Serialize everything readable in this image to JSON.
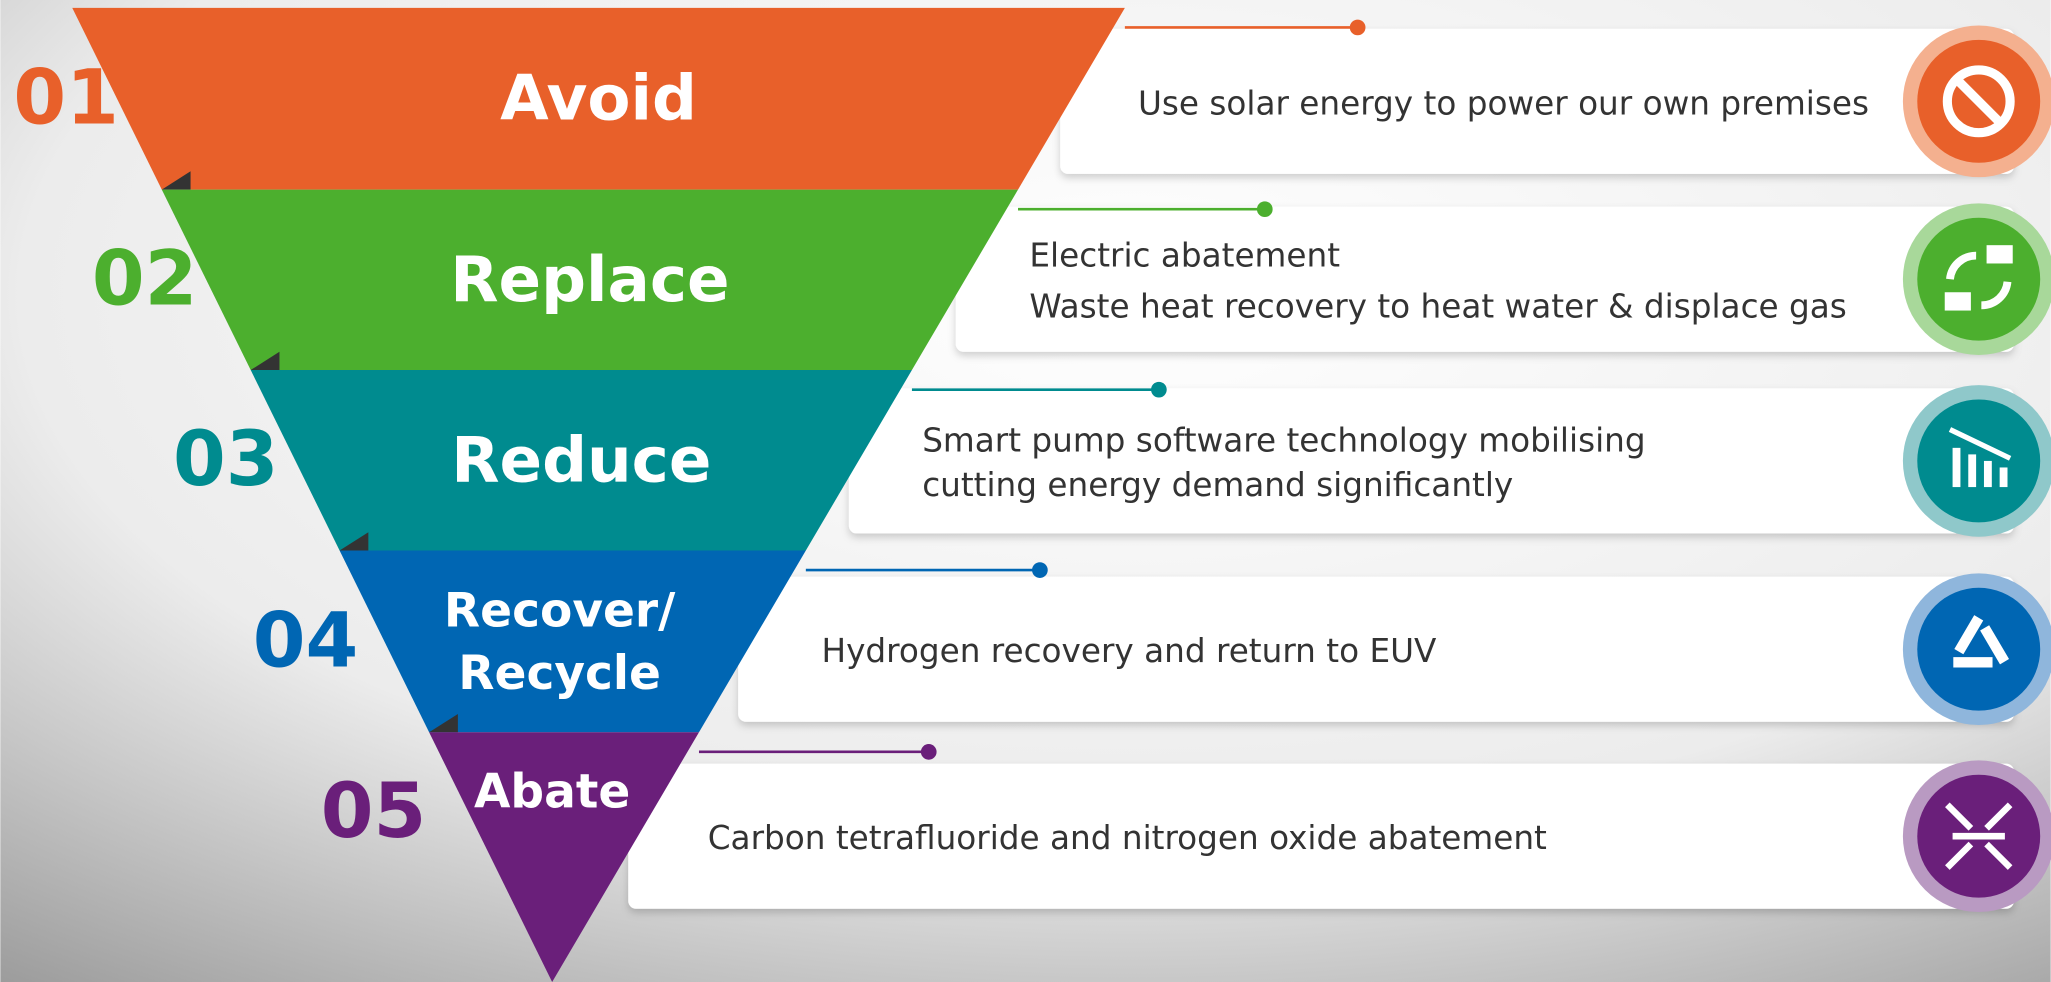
{
  "levels": [
    {
      "number": "01",
      "label": [
        "Avoid"
      ],
      "description": [
        "Use solar energy to power our own premises"
      ],
      "color": "#e8602a",
      "light": "#f4b08f"
    },
    {
      "number": "02",
      "label": [
        "Replace"
      ],
      "description": [
        "Electric abatement",
        "Waste heat recovery to heat water & displace gas"
      ],
      "color": "#4caf2e",
      "light": "#a8d89a"
    },
    {
      "number": "03",
      "label": [
        "Reduce"
      ],
      "description": [
        "Smart pump software technology mobilising",
        "cutting energy demand significantly"
      ],
      "color": "#008b8f",
      "light": "#8fc8ca"
    },
    {
      "number": "04",
      "label": [
        "Recover/",
        "Recycle"
      ],
      "description": [
        "Hydrogen recovery and return to EUV"
      ],
      "color": "#0066b3",
      "light": "#8fb6dc"
    },
    {
      "number": "05",
      "label": [
        "Abate"
      ],
      "description": [
        "Carbon tetrafluoride and nitrogen oxide abatement"
      ],
      "color": "#6a1f7a",
      "light": "#b99ac2"
    }
  ]
}
